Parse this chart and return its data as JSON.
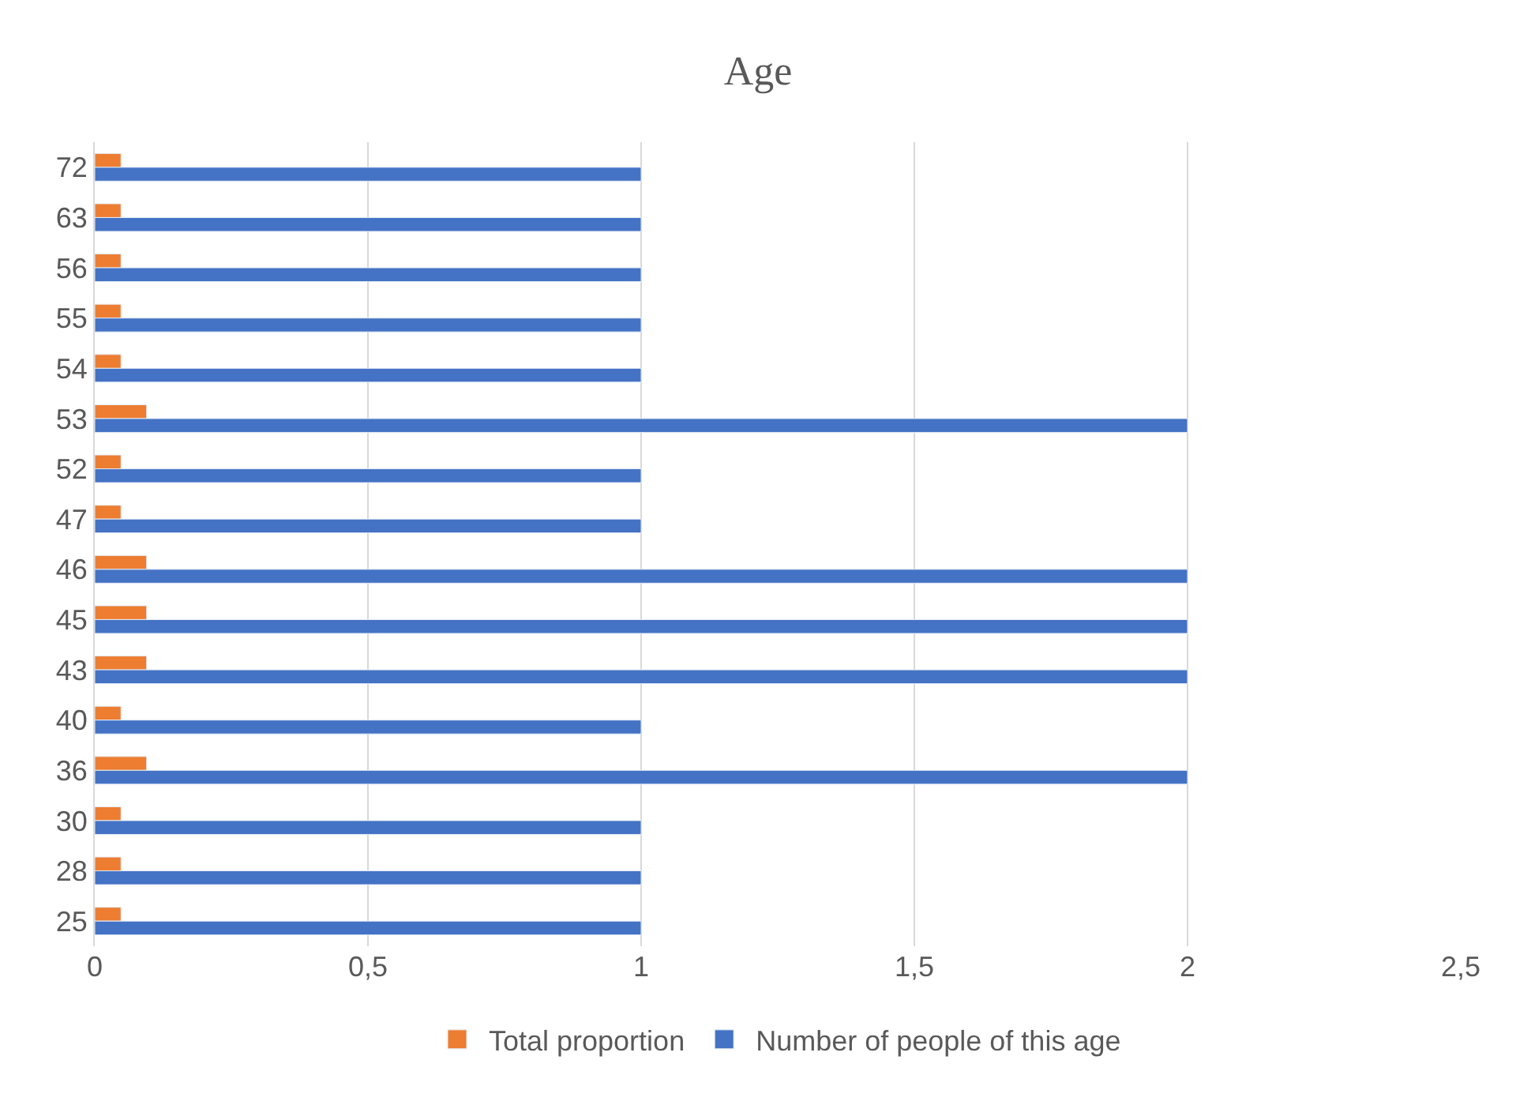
{
  "chart_data": {
    "type": "bar",
    "title": "Age",
    "orientation": "horizontal",
    "categories": [
      "72",
      "63",
      "56",
      "55",
      "54",
      "53",
      "52",
      "47",
      "46",
      "45",
      "43",
      "40",
      "36",
      "30",
      "28",
      "25"
    ],
    "series": [
      {
        "name": "Total proportion",
        "color": "#ed7d31",
        "values": [
          0.048,
          0.048,
          0.048,
          0.048,
          0.048,
          0.095,
          0.048,
          0.048,
          0.095,
          0.095,
          0.095,
          0.048,
          0.095,
          0.048,
          0.048,
          0.048
        ]
      },
      {
        "name": "Number of people of this age",
        "color": "#4472c4",
        "values": [
          1,
          1,
          1,
          1,
          1,
          2,
          1,
          1,
          2,
          2,
          2,
          1,
          2,
          1,
          1,
          1
        ]
      }
    ],
    "xlim": [
      0,
      2.5
    ],
    "xticks": [
      0,
      {
        "value": 0.5,
        "label": "0,5"
      },
      1,
      {
        "value": 1.5,
        "label": "1,5"
      },
      2,
      {
        "value": 2.5,
        "label": "2,5"
      }
    ],
    "grid": "x",
    "legend": "bottom"
  }
}
